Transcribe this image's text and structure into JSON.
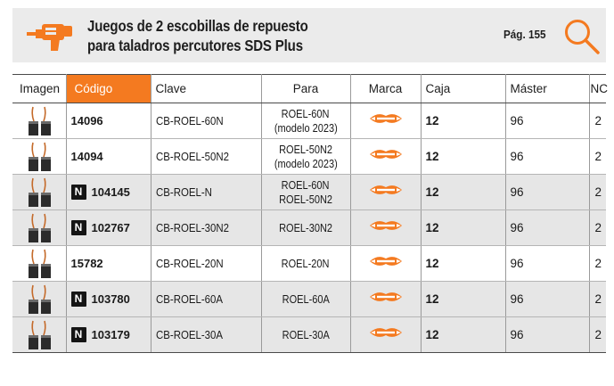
{
  "header": {
    "title_line1": "Juegos de 2 escobillas de repuesto",
    "title_line2": "para taladros percutores SDS Plus",
    "page_ref": "Pág. 155",
    "icon": "hammer-drill-icon",
    "search_icon": "magnifier-icon"
  },
  "colors": {
    "accent": "#f47a20",
    "header_bg": "#ebebeb",
    "shaded_row": "#e6e6e6",
    "badge": "#151515"
  },
  "table": {
    "columns": {
      "imagen": "Imagen",
      "codigo": "Código",
      "clave": "Clave",
      "para": "Para",
      "marca": "Marca",
      "caja": "Caja",
      "master": "Máster",
      "nc": "NC"
    },
    "rows": [
      {
        "badge": "",
        "codigo": "14096",
        "clave": "CB-ROEL-60N",
        "para1": "ROEL-60N",
        "para2": "(modelo 2023)",
        "marca_icon": "truper-logo-icon",
        "caja": "12",
        "master": "96",
        "nc": "2",
        "shaded": false
      },
      {
        "badge": "",
        "codigo": "14094",
        "clave": "CB-ROEL-50N2",
        "para1": "ROEL-50N2",
        "para2": "(modelo 2023)",
        "marca_icon": "truper-logo-icon",
        "caja": "12",
        "master": "96",
        "nc": "2",
        "shaded": false
      },
      {
        "badge": "N",
        "codigo": "104145",
        "clave": "CB-ROEL-N",
        "para1": "ROEL-60N",
        "para2": "ROEL-50N2",
        "marca_icon": "truper-logo-icon",
        "caja": "12",
        "master": "96",
        "nc": "2",
        "shaded": true
      },
      {
        "badge": "N",
        "codigo": "102767",
        "clave": "CB-ROEL-30N2",
        "para1": "ROEL-30N2",
        "para2": "",
        "marca_icon": "truper-logo-icon",
        "caja": "12",
        "master": "96",
        "nc": "2",
        "shaded": true
      },
      {
        "badge": "",
        "codigo": "15782",
        "clave": "CB-ROEL-20N",
        "para1": "ROEL-20N",
        "para2": "",
        "marca_icon": "truper-logo-icon",
        "caja": "12",
        "master": "96",
        "nc": "2",
        "shaded": false
      },
      {
        "badge": "N",
        "codigo": "103780",
        "clave": "CB-ROEL-60A",
        "para1": "ROEL-60A",
        "para2": "",
        "marca_icon": "truper-logo-icon",
        "caja": "12",
        "master": "96",
        "nc": "2",
        "shaded": true
      },
      {
        "badge": "N",
        "codigo": "103179",
        "clave": "CB-ROEL-30A",
        "para1": "ROEL-30A",
        "para2": "",
        "marca_icon": "truper-logo-icon",
        "caja": "12",
        "master": "96",
        "nc": "2",
        "shaded": true
      }
    ]
  }
}
